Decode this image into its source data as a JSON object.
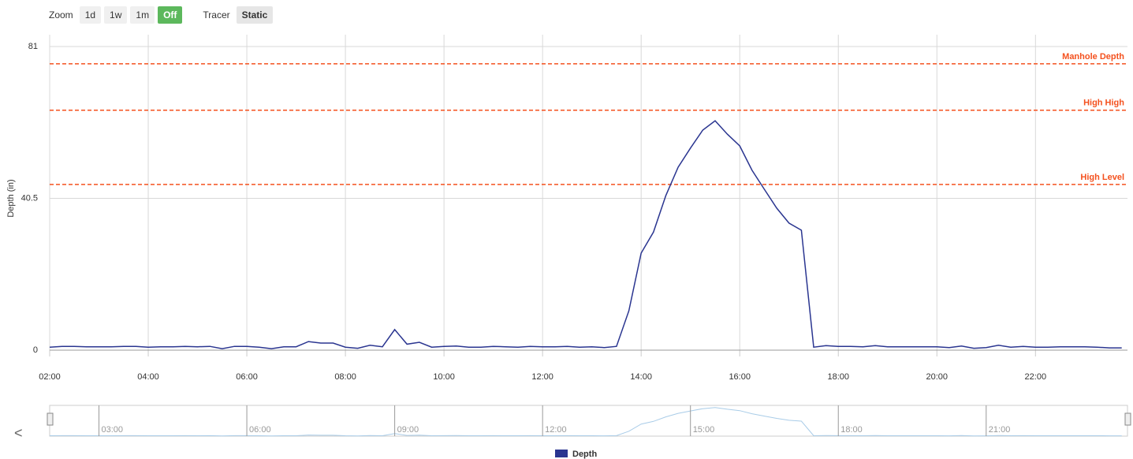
{
  "toolbar": {
    "zoom_label": "Zoom",
    "zoom_buttons": [
      {
        "label": "1d",
        "active": false
      },
      {
        "label": "1w",
        "active": false
      },
      {
        "label": "1m",
        "active": false
      },
      {
        "label": "Off",
        "active": true
      }
    ],
    "tracer_label": "Tracer",
    "tracer_value": "Static"
  },
  "chart_data": {
    "type": "line",
    "y_label": "Depth (in)",
    "x": [
      "02:00",
      "02:15",
      "02:30",
      "02:45",
      "03:00",
      "03:15",
      "03:30",
      "03:45",
      "04:00",
      "04:15",
      "04:30",
      "04:45",
      "05:00",
      "05:15",
      "05:30",
      "05:45",
      "06:00",
      "06:15",
      "06:30",
      "06:45",
      "07:00",
      "07:15",
      "07:30",
      "07:45",
      "08:00",
      "08:15",
      "08:30",
      "08:45",
      "09:00",
      "09:15",
      "09:30",
      "09:45",
      "10:00",
      "10:15",
      "10:30",
      "10:45",
      "11:00",
      "11:15",
      "11:30",
      "11:45",
      "12:00",
      "12:15",
      "12:30",
      "12:45",
      "13:00",
      "13:15",
      "13:30",
      "13:45",
      "14:00",
      "14:15",
      "14:30",
      "14:45",
      "15:00",
      "15:15",
      "15:30",
      "15:45",
      "16:00",
      "16:15",
      "16:30",
      "16:45",
      "17:00",
      "17:15",
      "17:30",
      "17:45",
      "18:00",
      "18:15",
      "18:30",
      "18:45",
      "19:00",
      "19:15",
      "19:30",
      "19:45",
      "20:00",
      "20:15",
      "20:30",
      "20:45",
      "21:00",
      "21:15",
      "21:30",
      "21:45",
      "22:00",
      "22:15",
      "22:30",
      "22:45",
      "23:00",
      "23:15",
      "23:30",
      "23:45"
    ],
    "series": [
      {
        "name": "Depth",
        "color": "#2a3590",
        "values": [
          0.8,
          1,
          1,
          0.9,
          0.9,
          0.9,
          1,
          1,
          0.8,
          0.9,
          0.9,
          1,
          0.9,
          1,
          0.4,
          1,
          1,
          0.8,
          0.4,
          0.9,
          0.9,
          2.3,
          1.9,
          1.9,
          0.8,
          0.5,
          1.3,
          0.9,
          5.5,
          1.6,
          2.1,
          0.8,
          1,
          1.1,
          0.8,
          0.8,
          1,
          0.9,
          0.8,
          1,
          0.9,
          0.9,
          1,
          0.8,
          0.9,
          0.7,
          1,
          10.5,
          25.9,
          31.5,
          41.2,
          48.8,
          53.9,
          58.7,
          61.2,
          57.6,
          54.5,
          48,
          42.9,
          37.9,
          33.9,
          32,
          0.8,
          1.2,
          1,
          1,
          0.9,
          1.2,
          0.9,
          0.9,
          0.9,
          0.9,
          0.9,
          0.7,
          1.1,
          0.5,
          0.7,
          1.3,
          0.8,
          1,
          0.8,
          0.8,
          0.9,
          0.9,
          0.9,
          0.8,
          0.6,
          0.6
        ]
      }
    ],
    "xlim": [
      "02:00",
      "23:52"
    ],
    "xticks": [
      "02:00",
      "04:00",
      "06:00",
      "08:00",
      "10:00",
      "12:00",
      "14:00",
      "16:00",
      "18:00",
      "20:00",
      "22:00"
    ],
    "ylim": [
      0,
      81
    ],
    "yticks": [
      0,
      40.5,
      81
    ],
    "grid": true,
    "plot_lines": [
      {
        "label": "Manhole Depth",
        "value": 76.4,
        "color": "#f4511e"
      },
      {
        "label": "High High",
        "value": 64,
        "color": "#f4511e"
      },
      {
        "label": "High Level",
        "value": 44.2,
        "color": "#f4511e"
      }
    ],
    "navigator": {
      "back": "<",
      "ticks": [
        "03:00",
        "06:00",
        "09:00",
        "12:00",
        "15:00",
        "18:00",
        "21:00"
      ]
    }
  }
}
